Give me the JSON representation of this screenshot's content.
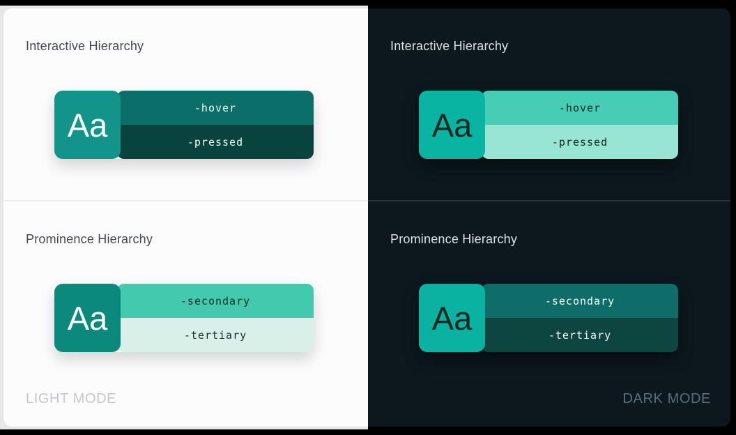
{
  "page": {
    "frame_color": "#000000",
    "light_backdrop": "#e6e7e7"
  },
  "light": {
    "panel_bg": "#fcfcfd",
    "divider": "#ededee",
    "title_color": "#45494e",
    "mode_label": "LIGHT MODE",
    "mode_label_color": "#c5c8ca",
    "sections": [
      {
        "title": "Interactive Hierarchy",
        "letters": "Aa",
        "letters_color": "#ffffff",
        "primary": "#12948a",
        "bars": [
          {
            "label": "-hover",
            "bg": "#0b6f68",
            "text": "#f2fbfa"
          },
          {
            "label": "-pressed",
            "bg": "#09433e",
            "text": "#f2fbfa"
          }
        ]
      },
      {
        "title": "Prominence Hierarchy",
        "letters": "Aa",
        "letters_color": "#ffffff",
        "primary": "#0b897d",
        "bars": [
          {
            "label": "-secondary",
            "bg": "#43c9ad",
            "text": "#12302c"
          },
          {
            "label": "-tertiary",
            "bg": "#d9f0e8",
            "text": "#12302c"
          }
        ]
      }
    ]
  },
  "dark": {
    "panel_bg": "#0c181e",
    "divider": "#243238",
    "title_color": "#dce1e3",
    "mode_label": "DARK MODE",
    "mode_label_color": "#5c6d74",
    "sections": [
      {
        "title": "Interactive Hierarchy",
        "letters": "Aa",
        "letters_color": "#0e2622",
        "primary": "#0ab4a2",
        "bars": [
          {
            "label": "-hover",
            "bg": "#47cdb6",
            "text": "#0e2622"
          },
          {
            "label": "-pressed",
            "bg": "#99e5d3",
            "text": "#0e2622"
          }
        ]
      },
      {
        "title": "Prominence Hierarchy",
        "letters": "Aa",
        "letters_color": "#0e2622",
        "primary": "#09b2a1",
        "bars": [
          {
            "label": "-secondary",
            "bg": "#0e6e67",
            "text": "#f4fbfa"
          },
          {
            "label": "-tertiary",
            "bg": "#0d4540",
            "text": "#f4fbfa"
          }
        ]
      }
    ]
  }
}
